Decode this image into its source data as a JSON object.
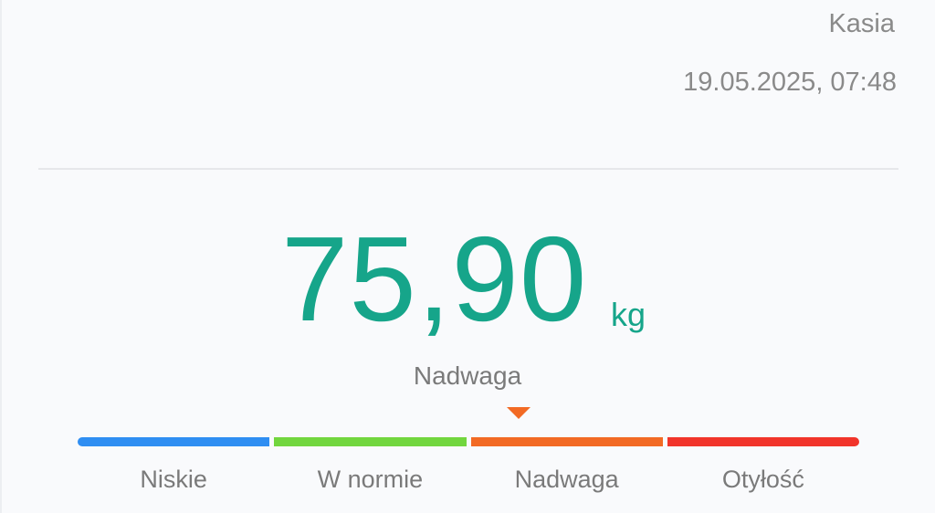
{
  "header": {
    "user_name": "Kasia",
    "datetime": "19.05.2025, 07:48"
  },
  "measurement": {
    "value": "75,90",
    "unit": "kg",
    "status": "Nadwaga"
  },
  "scale": {
    "indicator_position_fraction": 0.564,
    "indicator_color": "#f26a24",
    "segments": [
      {
        "label": "Niskie",
        "color": "#2f8ef2"
      },
      {
        "label": "W normie",
        "color": "#72d63e"
      },
      {
        "label": "Nadwaga",
        "color": "#f26a24"
      },
      {
        "label": "Otyłość",
        "color": "#f1342a"
      }
    ]
  },
  "colors": {
    "accent": "#16a58a"
  }
}
